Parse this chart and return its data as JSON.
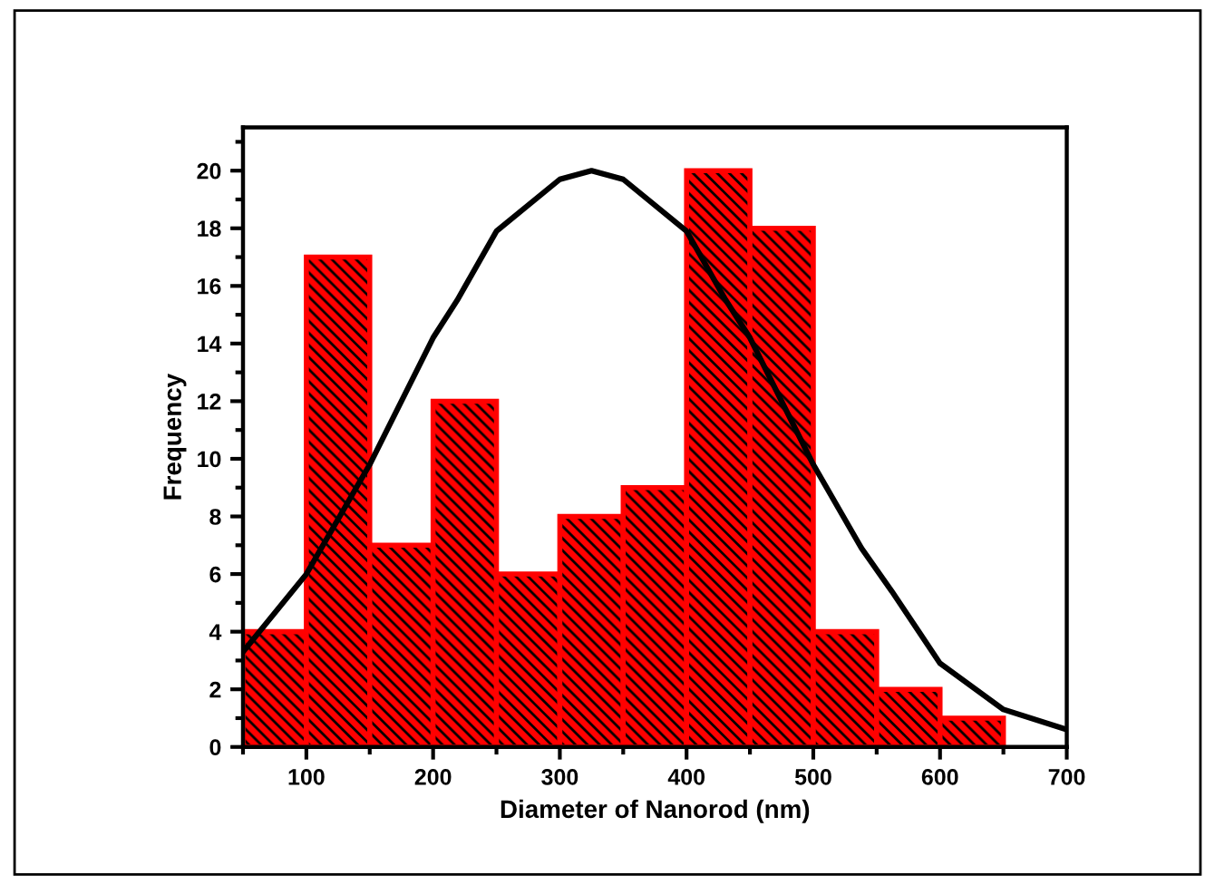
{
  "chart_data": {
    "type": "histogram",
    "xlabel": "Diameter of Nanorod (nm)",
    "ylabel": "Frequency",
    "bins": [
      50,
      100,
      150,
      200,
      250,
      300,
      350,
      400,
      450,
      500,
      550,
      600,
      650
    ],
    "values": [
      4,
      17,
      7,
      12,
      6,
      8,
      9,
      20,
      18,
      4,
      2,
      1
    ],
    "color": "#ff0000",
    "series": [
      {
        "type": "line",
        "color": "#000000",
        "x": [
          50,
          100,
          150,
          200,
          219,
          250,
          300,
          325,
          350,
          400,
          431,
          450,
          500,
          538,
          562,
          600,
          650,
          700
        ],
        "values": [
          3.3,
          6.0,
          9.8,
          14.2,
          15.5,
          17.9,
          19.7,
          20,
          19.7,
          17.9,
          15.5,
          14.2,
          9.8,
          6.9,
          5.4,
          2.9,
          1.3,
          0.6
        ]
      }
    ],
    "xlim": [
      50,
      700
    ],
    "ylim": [
      0,
      21.5
    ],
    "xticks": [
      {
        "value": 50,
        "label": null
      },
      100,
      {
        "value": 150,
        "label": null
      },
      200,
      {
        "value": 250,
        "label": null
      },
      300,
      {
        "value": 350,
        "label": null
      },
      400,
      {
        "value": 450,
        "label": null
      },
      500,
      {
        "value": 550,
        "label": null
      },
      600,
      {
        "value": 650,
        "label": null
      },
      700
    ],
    "yticks": [
      0,
      {
        "value": 1,
        "label": null
      },
      2,
      {
        "value": 3,
        "label": null
      },
      4,
      {
        "value": 5,
        "label": null
      },
      6,
      {
        "value": 7,
        "label": null
      },
      8,
      {
        "value": 9,
        "label": null
      },
      10,
      {
        "value": 11,
        "label": null
      },
      12,
      {
        "value": 13,
        "label": null
      },
      14,
      {
        "value": 15,
        "label": null
      },
      16,
      {
        "value": 17,
        "label": null
      },
      18,
      {
        "value": 19,
        "label": null
      },
      20,
      {
        "value": 21,
        "label": null
      }
    ],
    "grid": false,
    "legend": false
  }
}
